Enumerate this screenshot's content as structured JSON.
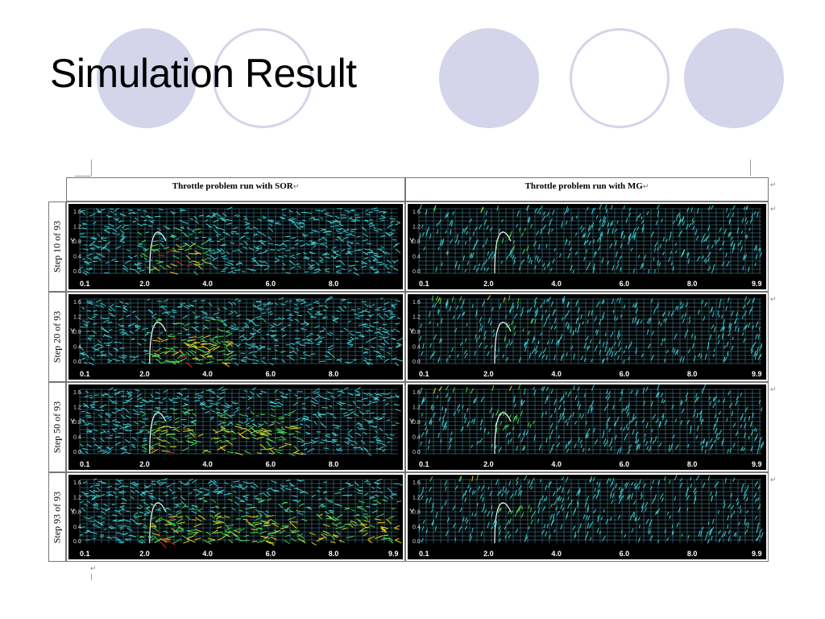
{
  "slide": {
    "title": "Simulation Result",
    "accent_color": "#d4d4ea"
  },
  "table": {
    "columns": [
      {
        "label": "Throttle problem run with SOR"
      },
      {
        "label": "Throttle problem run with MG"
      }
    ],
    "rows": [
      {
        "label": "Step 10 of 93",
        "step": 10
      },
      {
        "label": "Step 20 of 93",
        "step": 20
      },
      {
        "label": "Step 50 of 93",
        "step": 50
      },
      {
        "label": "Step 93 of 93",
        "step": 93
      }
    ],
    "total_steps": 93,
    "paragraph_mark": "↵"
  },
  "plots": {
    "y_axis_label": "Y",
    "y_ticks": [
      "1.6",
      "1.2",
      "0.8",
      "0.4",
      "0.0"
    ],
    "x_ticks": {
      "SOR": [
        [
          "0.1",
          "2.0",
          "4.0",
          "6.0",
          "8.0"
        ],
        [
          "0.1",
          "2.0",
          "4.0",
          "6.0",
          "8.0"
        ],
        [
          "0.1",
          "2.0",
          "4.0",
          "6.0",
          "8.0"
        ],
        [
          "0.1",
          "2.0",
          "4.0",
          "6.0",
          "8.0",
          "9.9"
        ]
      ],
      "MG": [
        [
          "0.1",
          "2.0",
          "4.0",
          "6.0",
          "8.0",
          "9.9"
        ],
        [
          "0.1",
          "2.0",
          "4.0",
          "6.0",
          "8.0",
          "9.9"
        ],
        [
          "0.1",
          "2.0",
          "4.0",
          "6.0",
          "8.0",
          "9.9"
        ],
        [
          "0.1",
          "2.0",
          "4.0",
          "6.0",
          "8.0",
          "9.9"
        ]
      ]
    },
    "colors": {
      "background": "#000000",
      "grid": "#66c8e6",
      "vector_low": "#3fd9e0",
      "vector_mid": "#4ee35a",
      "vector_high": "#ffe21a",
      "vector_peak": "#ff2a1a"
    }
  }
}
